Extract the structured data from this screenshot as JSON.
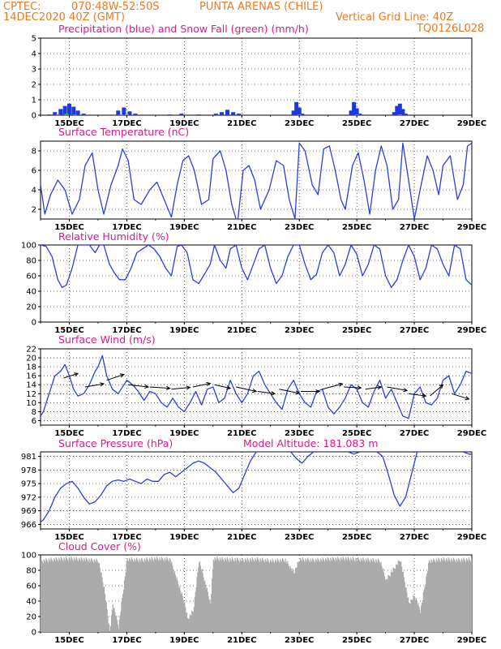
{
  "header": {
    "line1_left": "CPTEC:",
    "coords": "070:48W-52:50S",
    "location": "PUNTA ARENAS (CHILE)",
    "run_time": "14DEC2020 40Z (GMT)",
    "grid_line": "Vertical Grid Line: 40Z",
    "model_code": "TQ0126L028"
  },
  "x_ticks": [
    "15DEC",
    "17DEC",
    "19DEC",
    "21DEC",
    "23DEC",
    "25DEC",
    "27DEC",
    "29DEC"
  ],
  "colors": {
    "line": "#2a3ee8",
    "precip": "#1a3ae0",
    "snow": "#20c020",
    "cloud": "#aaaaaa",
    "header": "#f07820",
    "title": "#e0188c"
  },
  "chart_data": [
    {
      "type": "bar",
      "title": "Precipitation (blue) and Snow Fall (green) (mm/h)",
      "xlim": [
        14.0,
        29.0
      ],
      "ylim": [
        0,
        5
      ],
      "yticks": [
        0,
        1,
        2,
        3,
        4,
        5
      ],
      "series": [
        {
          "name": "Precipitation",
          "x": [
            14.3,
            14.5,
            14.7,
            14.85,
            15.0,
            15.15,
            15.3,
            15.5,
            16.7,
            16.9,
            17.1,
            17.3,
            18.5,
            18.9,
            19.5,
            20.1,
            20.3,
            20.5,
            20.7,
            20.9,
            22.8,
            22.9,
            23.0,
            23.1,
            24.8,
            24.9,
            25.0,
            25.1,
            26.3,
            26.4,
            26.5,
            26.6,
            26.7
          ],
          "values": [
            0.05,
            0.2,
            0.4,
            0.6,
            0.75,
            0.55,
            0.3,
            0.1,
            0.3,
            0.5,
            0.25,
            0.1,
            0.05,
            0.1,
            0.05,
            0.1,
            0.2,
            0.35,
            0.2,
            0.1,
            0.3,
            0.85,
            0.5,
            0.1,
            0.3,
            0.85,
            0.45,
            0.1,
            0.2,
            0.6,
            0.75,
            0.4,
            0.1
          ]
        },
        {
          "name": "Snow Fall",
          "x": [
            14.6,
            14.9,
            15.2,
            16.8,
            17.0,
            23.0,
            25.0,
            26.5
          ],
          "values": [
            0.05,
            0.1,
            0.05,
            0.05,
            0.05,
            0.05,
            0.05,
            0.05
          ]
        }
      ]
    },
    {
      "type": "line",
      "title": "Surface Temperature (nC)",
      "xlim": [
        14.0,
        29.0
      ],
      "ylim": [
        1,
        9
      ],
      "yticks": [
        2,
        4,
        6,
        8
      ],
      "series": [
        {
          "name": "Temperature",
          "x": [
            14.0,
            14.15,
            14.35,
            14.6,
            14.85,
            15.1,
            15.35,
            15.55,
            15.8,
            16.0,
            16.2,
            16.45,
            16.7,
            16.85,
            17.05,
            17.25,
            17.5,
            17.8,
            18.05,
            18.3,
            18.55,
            18.75,
            18.95,
            19.15,
            19.35,
            19.6,
            19.85,
            20.0,
            20.25,
            20.45,
            20.65,
            20.85,
            21.05,
            21.25,
            21.45,
            21.65,
            21.95,
            22.2,
            22.45,
            22.65,
            22.85,
            23.0,
            23.2,
            23.45,
            23.65,
            23.85,
            24.05,
            24.25,
            24.45,
            24.6,
            24.85,
            25.05,
            25.25,
            25.45,
            25.65,
            25.85,
            26.05,
            26.25,
            26.45,
            26.6,
            26.8,
            27.0,
            27.2,
            27.45,
            27.65,
            27.85,
            28.0,
            28.25,
            28.5,
            28.7,
            28.85,
            29.0
          ],
          "values": [
            4.5,
            1.5,
            3.5,
            5.0,
            4.0,
            1.5,
            3.0,
            6.5,
            7.8,
            4.0,
            1.5,
            4.5,
            6.5,
            8.2,
            7.0,
            3.0,
            2.5,
            4.0,
            4.8,
            3.0,
            1.2,
            4.5,
            7.0,
            7.5,
            6.0,
            2.5,
            3.0,
            7.2,
            8.0,
            6.0,
            2.5,
            0.5,
            6.0,
            6.5,
            5.0,
            2.0,
            4.0,
            7.0,
            6.5,
            3.0,
            1.0,
            8.8,
            8.0,
            4.5,
            3.5,
            8.2,
            8.5,
            6.0,
            3.0,
            2.0,
            6.5,
            7.8,
            5.0,
            1.5,
            6.0,
            8.5,
            6.5,
            2.0,
            3.0,
            8.8,
            5.0,
            1.0,
            4.0,
            7.5,
            6.0,
            3.5,
            6.5,
            7.5,
            3.0,
            4.5,
            8.5,
            8.8
          ]
        }
      ]
    },
    {
      "type": "line",
      "title": "Relative Humidity (%)",
      "xlim": [
        14.0,
        29.0
      ],
      "ylim": [
        0,
        100
      ],
      "yticks": [
        0,
        20,
        40,
        60,
        80,
        100
      ],
      "series": [
        {
          "name": "Relative Humidity",
          "x": [
            14.0,
            14.2,
            14.4,
            14.6,
            14.75,
            14.9,
            15.1,
            15.3,
            15.5,
            15.7,
            15.9,
            16.05,
            16.2,
            16.4,
            16.55,
            16.75,
            16.95,
            17.15,
            17.35,
            17.55,
            17.75,
            17.95,
            18.15,
            18.35,
            18.55,
            18.75,
            18.9,
            19.1,
            19.3,
            19.5,
            19.7,
            19.9,
            20.05,
            20.25,
            20.45,
            20.6,
            20.8,
            21.0,
            21.2,
            21.4,
            21.6,
            21.8,
            22.0,
            22.2,
            22.4,
            22.6,
            22.8,
            23.0,
            23.2,
            23.4,
            23.6,
            23.8,
            24.0,
            24.2,
            24.4,
            24.6,
            24.8,
            25.0,
            25.2,
            25.4,
            25.6,
            25.8,
            26.0,
            26.2,
            26.4,
            26.6,
            26.8,
            27.0,
            27.2,
            27.4,
            27.6,
            27.8,
            28.0,
            28.2,
            28.4,
            28.6,
            28.8,
            29.0
          ],
          "values": [
            100,
            98,
            85,
            55,
            45,
            48,
            70,
            100,
            100,
            100,
            90,
            100,
            100,
            75,
            65,
            55,
            55,
            70,
            90,
            95,
            100,
            95,
            85,
            70,
            60,
            98,
            100,
            90,
            55,
            50,
            62,
            75,
            100,
            80,
            70,
            95,
            100,
            70,
            55,
            75,
            95,
            100,
            70,
            50,
            60,
            85,
            100,
            100,
            75,
            55,
            62,
            90,
            100,
            90,
            60,
            75,
            100,
            88,
            60,
            75,
            100,
            95,
            60,
            45,
            55,
            80,
            100,
            85,
            55,
            70,
            100,
            95,
            75,
            60,
            100,
            95,
            55,
            48
          ]
        }
      ]
    },
    {
      "type": "line",
      "title": "Surface Wind (m/s)",
      "xlim": [
        14.0,
        29.0
      ],
      "ylim": [
        5,
        22
      ],
      "yticks": [
        6,
        8,
        10,
        12,
        14,
        16,
        18,
        20,
        22
      ],
      "series": [
        {
          "name": "Wind Speed",
          "x": [
            14.0,
            14.1,
            14.3,
            14.5,
            14.7,
            14.85,
            15.0,
            15.15,
            15.3,
            15.5,
            15.7,
            15.9,
            16.0,
            16.15,
            16.3,
            16.5,
            16.7,
            16.9,
            17.0,
            17.2,
            17.4,
            17.6,
            17.8,
            18.0,
            18.2,
            18.4,
            18.6,
            18.8,
            19.0,
            19.2,
            19.4,
            19.6,
            19.8,
            20.0,
            20.2,
            20.4,
            20.6,
            20.8,
            21.0,
            21.2,
            21.4,
            21.6,
            21.8,
            22.0,
            22.2,
            22.4,
            22.6,
            22.8,
            23.0,
            23.2,
            23.4,
            23.6,
            23.8,
            24.0,
            24.2,
            24.4,
            24.6,
            24.8,
            25.0,
            25.2,
            25.4,
            25.6,
            25.8,
            26.0,
            26.2,
            26.4,
            26.6,
            26.8,
            27.0,
            27.2,
            27.4,
            27.6,
            27.8,
            28.0,
            28.2,
            28.4,
            28.6,
            28.8,
            29.0
          ],
          "values": [
            7,
            8,
            12,
            16,
            17,
            18.5,
            16,
            13,
            11.5,
            12,
            14,
            17,
            18,
            20.5,
            16,
            13,
            12,
            14,
            15,
            14,
            12.5,
            10.5,
            12.5,
            12,
            10,
            9,
            11,
            9,
            8,
            10,
            12.5,
            9.5,
            13,
            13.5,
            10,
            11,
            15,
            12,
            10,
            12,
            16,
            17,
            14,
            12,
            10,
            8.5,
            13,
            15,
            12,
            10,
            9,
            12.5,
            13,
            9,
            7.5,
            9,
            11,
            14,
            13,
            10,
            9,
            12.5,
            15,
            11,
            13,
            10,
            7,
            6.5,
            12,
            13.5,
            10,
            9.5,
            11,
            15,
            16,
            12,
            14,
            17,
            16.5
          ]
        }
      ],
      "arrows": {
        "x": [
          14.8,
          15.55,
          16.3,
          17.05,
          17.8,
          18.55,
          19.3,
          20.05,
          20.8,
          21.55,
          22.3,
          23.05,
          23.8,
          24.55,
          25.3,
          26.05,
          26.8,
          27.55,
          28.3,
          29.0
        ],
        "y": [
          15.5,
          13.5,
          15,
          14,
          13.5,
          13,
          13.5,
          14,
          13.5,
          12.5,
          13,
          12.5,
          13,
          13.5,
          13,
          13.5,
          12,
          11.5,
          12,
          10.5
        ],
        "dx": [
          0.5,
          0.65,
          0.6,
          0.7,
          0.7,
          0.65,
          0.6,
          0.55,
          0.7,
          0.6,
          0.7,
          0.65,
          0.7,
          0.6,
          0.55,
          0.7,
          0.6,
          0.45,
          0.6,
          0.5
        ],
        "dy": [
          1.0,
          0.7,
          1.3,
          -0.5,
          -0.3,
          0.4,
          0.8,
          -0.8,
          -1.0,
          -0.5,
          -0.9,
          0.0,
          1.2,
          -0.2,
          0.5,
          -0.8,
          -0.5,
          2.5,
          -1.2,
          -0.6
        ]
      }
    },
    {
      "type": "line",
      "title": "Surface Pressure (hPa)",
      "annotation": "Model Altitude: 181.083 m",
      "xlim": [
        14.0,
        29.0
      ],
      "ylim": [
        965,
        982
      ],
      "yticks": [
        966,
        969,
        972,
        975,
        978,
        981
      ],
      "series": [
        {
          "name": "Pressure",
          "x": [
            14.0,
            14.1,
            14.3,
            14.5,
            14.7,
            14.9,
            15.1,
            15.3,
            15.5,
            15.7,
            15.9,
            16.1,
            16.3,
            16.5,
            16.7,
            16.9,
            17.1,
            17.3,
            17.5,
            17.7,
            17.9,
            18.1,
            18.3,
            18.5,
            18.7,
            18.9,
            19.1,
            19.3,
            19.5,
            19.7,
            19.9,
            20.1,
            20.3,
            20.5,
            20.7,
            20.9,
            21.1,
            21.3,
            21.5,
            21.7,
            21.9,
            22.1,
            22.3,
            22.5,
            22.7,
            22.9,
            23.1,
            23.3,
            23.5,
            23.7,
            23.9,
            24.1,
            24.3,
            24.5,
            24.7,
            24.9,
            25.1,
            25.3,
            25.5,
            25.7,
            25.9,
            26.1,
            26.3,
            26.5,
            26.7,
            26.9,
            27.1,
            27.3,
            27.5,
            27.7,
            27.9,
            28.1,
            28.3,
            28.5,
            28.7,
            28.9,
            29.0
          ],
          "values": [
            966.5,
            967,
            969,
            972,
            974,
            975,
            975.5,
            974,
            972,
            970.5,
            971,
            972.5,
            974.5,
            975.5,
            975.8,
            975.5,
            976,
            975.5,
            975,
            976,
            975.5,
            975.5,
            977,
            977.5,
            976.5,
            977.5,
            978.5,
            979.5,
            980,
            979.5,
            978.5,
            977.5,
            976,
            974.5,
            973,
            974,
            977,
            980,
            982,
            982,
            982,
            982,
            982,
            982,
            982,
            980.5,
            979.5,
            981,
            982,
            982,
            982,
            982,
            982,
            982,
            982,
            981.5,
            982,
            982,
            982,
            982,
            981,
            977,
            972.5,
            970,
            972,
            977,
            982,
            982,
            982,
            982,
            982,
            982,
            982,
            982,
            982,
            981.5,
            981.5
          ]
        }
      ]
    },
    {
      "type": "bar",
      "title": "Cloud Cover (%)",
      "xlim": [
        14.0,
        29.0
      ],
      "ylim": [
        0,
        100
      ],
      "yticks": [
        0,
        20,
        40,
        60,
        80,
        100
      ],
      "series": [
        {
          "name": "Cloud Cover",
          "x": [
            14.0,
            14.5,
            15.0,
            15.5,
            16.0,
            16.2,
            16.4,
            16.5,
            16.7,
            17.0,
            17.5,
            18.0,
            18.5,
            19.0,
            19.1,
            19.3,
            19.5,
            19.9,
            20.0,
            20.5,
            21.0,
            21.5,
            22.0,
            22.5,
            22.8,
            23.0,
            23.5,
            24.0,
            24.5,
            25.0,
            25.5,
            25.8,
            26.0,
            26.5,
            26.8,
            27.0,
            27.2,
            27.5,
            28.0,
            28.5,
            29.0
          ],
          "values": [
            95,
            97,
            98,
            97,
            95,
            60,
            3,
            40,
            10,
            97,
            96,
            98,
            97,
            40,
            20,
            30,
            96,
            40,
            98,
            97,
            96,
            97,
            95,
            96,
            80,
            97,
            96,
            97,
            98,
            97,
            96,
            95,
            70,
            97,
            40,
            50,
            30,
            95,
            97,
            96,
            97
          ]
        }
      ]
    }
  ]
}
